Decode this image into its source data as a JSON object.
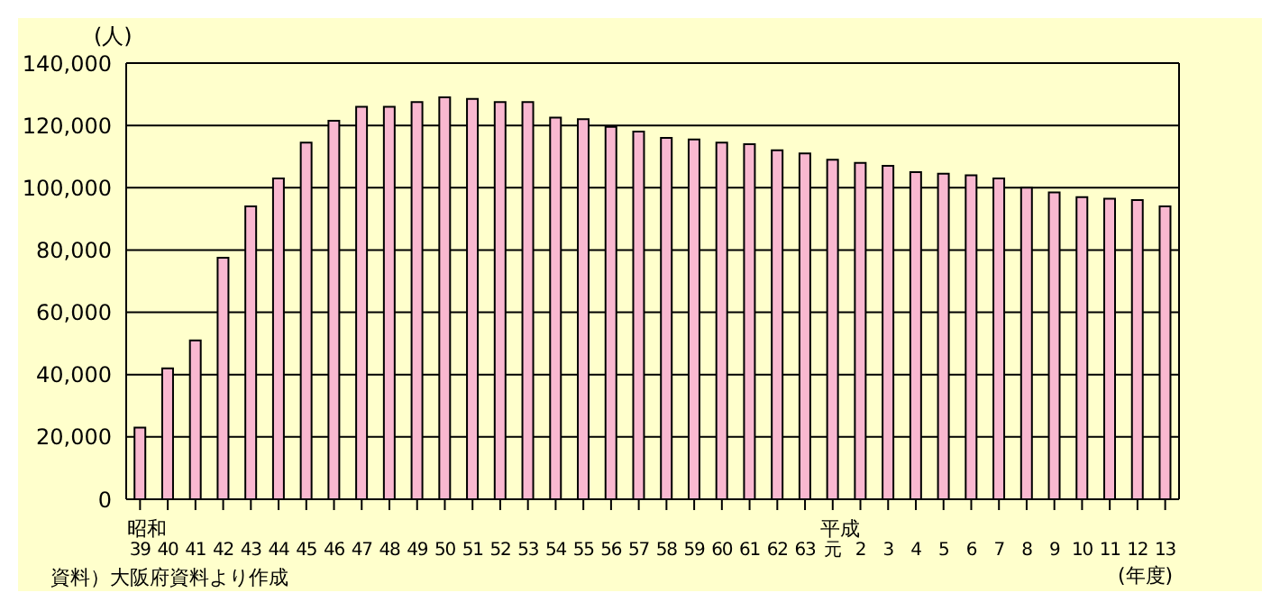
{
  "chart_data": {
    "type": "bar",
    "categories": [
      "39",
      "40",
      "41",
      "42",
      "43",
      "44",
      "45",
      "46",
      "47",
      "48",
      "49",
      "50",
      "51",
      "52",
      "53",
      "54",
      "55",
      "56",
      "57",
      "58",
      "59",
      "60",
      "61",
      "62",
      "63",
      "元",
      "2",
      "3",
      "4",
      "5",
      "6",
      "7",
      "8",
      "9",
      "10",
      "11",
      "12",
      "13"
    ],
    "values": [
      23000,
      42000,
      51000,
      77500,
      94000,
      103000,
      114500,
      121500,
      126000,
      126000,
      127500,
      129000,
      128500,
      127500,
      127500,
      122500,
      122000,
      119500,
      118000,
      116000,
      115500,
      114500,
      114000,
      112000,
      111000,
      109000,
      108000,
      107000,
      105000,
      104500,
      104000,
      103000,
      100000,
      98500,
      97000,
      96500,
      96000,
      94000
    ],
    "color": "#f9b8d0",
    "ylabel": "(人)",
    "xlabel": "(年度)",
    "ylim": [
      0,
      140000
    ],
    "yticks": [
      0,
      {
        "value": 20000,
        "label": "20,000"
      },
      {
        "value": 40000,
        "label": "40,000"
      },
      {
        "value": 60000,
        "label": "60,000"
      },
      {
        "value": 80000,
        "label": "80,000"
      },
      {
        "value": 100000,
        "label": "100,000"
      },
      {
        "value": 120000,
        "label": "120,000"
      },
      {
        "value": 140000,
        "label": "140,000"
      }
    ],
    "grid": "y",
    "legend": false,
    "annotations": [
      "昭和",
      "平成",
      "資料）大阪府資料より作成"
    ]
  }
}
